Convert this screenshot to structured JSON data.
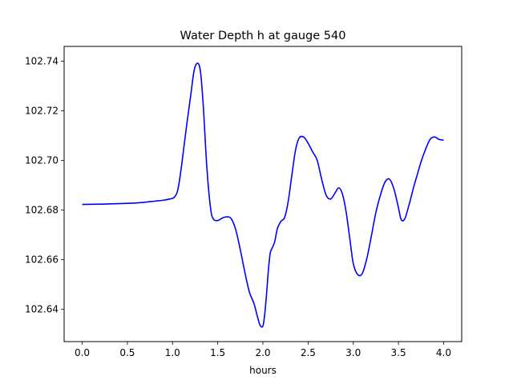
{
  "chart_data": {
    "type": "line",
    "title": "Water Depth h at gauge 540",
    "xlabel": "hours",
    "ylabel": "",
    "xlim": [
      -0.2,
      4.2
    ],
    "ylim": [
      102.627,
      102.746
    ],
    "x_ticks": [
      0.0,
      0.5,
      1.0,
      1.5,
      2.0,
      2.5,
      3.0,
      3.5,
      4.0
    ],
    "x_tick_labels": [
      "0.0",
      "0.5",
      "1.0",
      "1.5",
      "2.0",
      "2.5",
      "3.0",
      "3.5",
      "4.0"
    ],
    "y_ticks": [
      102.64,
      102.66,
      102.68,
      102.7,
      102.72,
      102.74
    ],
    "y_tick_labels": [
      "102.64",
      "102.66",
      "102.68",
      "102.70",
      "102.72",
      "102.74"
    ],
    "grid": false,
    "legend": "none",
    "series": [
      {
        "color": "#0000ff",
        "x": [
          0.0,
          0.2,
          0.4,
          0.6,
          0.7,
          0.8,
          0.9,
          0.97,
          1.02,
          1.06,
          1.1,
          1.15,
          1.2,
          1.24,
          1.28,
          1.31,
          1.34,
          1.38,
          1.42,
          1.45,
          1.5,
          1.55,
          1.6,
          1.65,
          1.7,
          1.75,
          1.8,
          1.85,
          1.9,
          1.94,
          1.97,
          2.0,
          2.02,
          2.04,
          2.06,
          2.08,
          2.1,
          2.13,
          2.16,
          2.2,
          2.24,
          2.28,
          2.32,
          2.36,
          2.4,
          2.45,
          2.5,
          2.55,
          2.6,
          2.65,
          2.7,
          2.75,
          2.8,
          2.84,
          2.88,
          2.92,
          2.96,
          3.0,
          3.05,
          3.1,
          3.15,
          3.2,
          3.25,
          3.3,
          3.35,
          3.4,
          3.45,
          3.5,
          3.53,
          3.57,
          3.62,
          3.67,
          3.71,
          3.75,
          3.8,
          3.85,
          3.9,
          3.95,
          4.0
        ],
        "values": [
          102.6823,
          102.6824,
          102.6826,
          102.6829,
          102.6832,
          102.6836,
          102.684,
          102.6845,
          102.6852,
          102.6885,
          102.698,
          102.7125,
          102.726,
          102.7365,
          102.7392,
          102.7355,
          102.722,
          102.697,
          102.681,
          102.6765,
          102.6758,
          102.6768,
          102.6773,
          102.6765,
          102.672,
          102.664,
          102.655,
          102.647,
          102.6425,
          102.637,
          102.6335,
          102.6333,
          102.638,
          102.646,
          102.6555,
          102.6625,
          102.6645,
          102.6672,
          102.6725,
          102.6755,
          102.677,
          102.6835,
          102.694,
          102.704,
          102.709,
          102.7095,
          102.707,
          102.7035,
          102.7002,
          102.6925,
          102.686,
          102.6845,
          102.687,
          102.689,
          102.6865,
          102.6795,
          102.669,
          102.6585,
          102.654,
          102.6545,
          102.6605,
          102.6695,
          102.679,
          102.686,
          102.6912,
          102.6925,
          102.6885,
          102.681,
          102.6762,
          102.6765,
          102.6825,
          102.6895,
          102.6945,
          102.6995,
          102.7045,
          102.7085,
          102.7095,
          102.7085,
          102.7082
        ]
      }
    ]
  }
}
